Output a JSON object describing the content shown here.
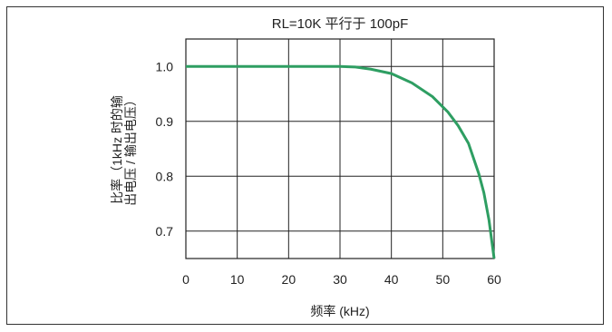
{
  "chart_data": {
    "type": "line",
    "title": "RL=10K 平行于 100pF",
    "xlabel": "频率 (kHz)",
    "ylabel_lines": [
      "比率（1kHz 时的输",
      "出电压 / 输出电压）"
    ],
    "xlim": [
      0,
      60
    ],
    "ylim": [
      0.65,
      1.05
    ],
    "xticks": [
      0,
      10,
      20,
      30,
      40,
      50,
      60
    ],
    "yticks": [
      0.7,
      0.8,
      0.9,
      1.0
    ],
    "ytick_labels": [
      "0.7",
      "0.8",
      "0.9",
      "1.0"
    ],
    "grid": true,
    "series": [
      {
        "color": "#2e9e62",
        "x": [
          0,
          10,
          20,
          30,
          33,
          36,
          40,
          44,
          48,
          51,
          53,
          55,
          57,
          58,
          59,
          60
        ],
        "y": [
          1.0,
          1.0,
          1.0,
          1.0,
          0.999,
          0.995,
          0.987,
          0.97,
          0.945,
          0.917,
          0.892,
          0.86,
          0.805,
          0.77,
          0.72,
          0.65
        ]
      }
    ]
  }
}
